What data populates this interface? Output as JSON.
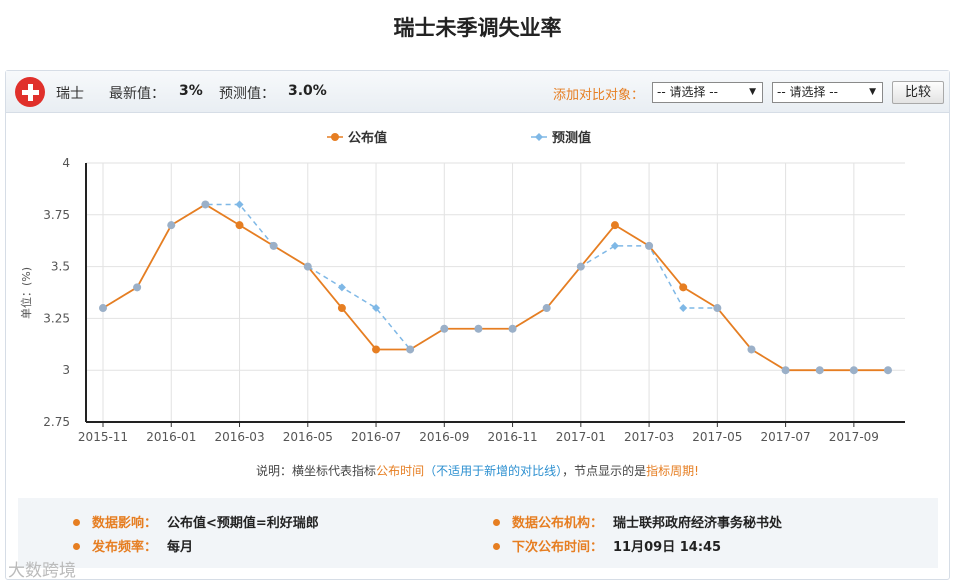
{
  "page": {
    "title": "瑞士未季调失业率"
  },
  "toolbar": {
    "country": "瑞士",
    "latest_label": "最新值：",
    "latest_value": "3%",
    "forecast_label": "预测值：",
    "forecast_value": "3.0%",
    "compare_label": "添加对比对象：",
    "select1": "-- 请选择 --",
    "select2": "-- 请选择 --",
    "compare_button": "比较"
  },
  "colors": {
    "actual": "#e67e22",
    "forecast": "#7fb8e6",
    "point_fill": "#9bb0c8",
    "accent": "#e67e22"
  },
  "chart_data": {
    "type": "line",
    "ylabel": "单位：(%)",
    "ylim": [
      2.75,
      4
    ],
    "yticks": [
      "2.75",
      "3",
      "3.25",
      "3.5",
      "3.75",
      "4"
    ],
    "grid": true,
    "legend_position": "top-center",
    "x_tick_labels": [
      "2015-11",
      "2016-01",
      "2016-03",
      "2016-05",
      "2016-07",
      "2016-09",
      "2016-11",
      "2017-01",
      "2017-03",
      "2017-05",
      "2017-07",
      "2017-09"
    ],
    "x": [
      "2015-11",
      "2015-12",
      "2016-01",
      "2016-02",
      "2016-03",
      "2016-04",
      "2016-05",
      "2016-06",
      "2016-07",
      "2016-08",
      "2016-09",
      "2016-10",
      "2016-11",
      "2016-12",
      "2017-01",
      "2017-02",
      "2017-03",
      "2017-04",
      "2017-05",
      "2017-06",
      "2017-07",
      "2017-08",
      "2017-09",
      "2017-10"
    ],
    "series": [
      {
        "name": "公布值",
        "values": [
          3.3,
          3.4,
          3.7,
          3.8,
          3.7,
          3.6,
          3.5,
          3.3,
          3.1,
          3.1,
          3.2,
          3.2,
          3.2,
          3.3,
          3.5,
          3.7,
          3.6,
          3.4,
          3.3,
          3.1,
          3.0,
          3.0,
          3.0,
          3.0
        ]
      },
      {
        "name": "预测值",
        "values": [
          3.3,
          3.4,
          3.7,
          3.8,
          3.8,
          3.6,
          3.5,
          3.4,
          3.3,
          3.1,
          3.2,
          3.2,
          3.2,
          3.3,
          3.5,
          3.6,
          3.6,
          3.3,
          3.3,
          3.1,
          3.0,
          3.0,
          3.0,
          3.0
        ]
      }
    ]
  },
  "note": {
    "p1": "说明：横坐标代表指标",
    "p2": "公布时间",
    "p3": "（不适用于新增的对比线）",
    "p4": "，节点显示的是",
    "p5": "指标周期",
    "p6": "!"
  },
  "info": {
    "impact_label": "数据影响：",
    "impact_value": "公布值<预期值=利好瑞郎",
    "agency_label": "数据公布机构：",
    "agency_value": "瑞士联邦政府经济事务秘书处",
    "freq_label": "发布频率：",
    "freq_value": "每月",
    "next_label": "下次公布时间：",
    "next_value": "11月09日 14:45"
  },
  "watermark": "大数跨境"
}
